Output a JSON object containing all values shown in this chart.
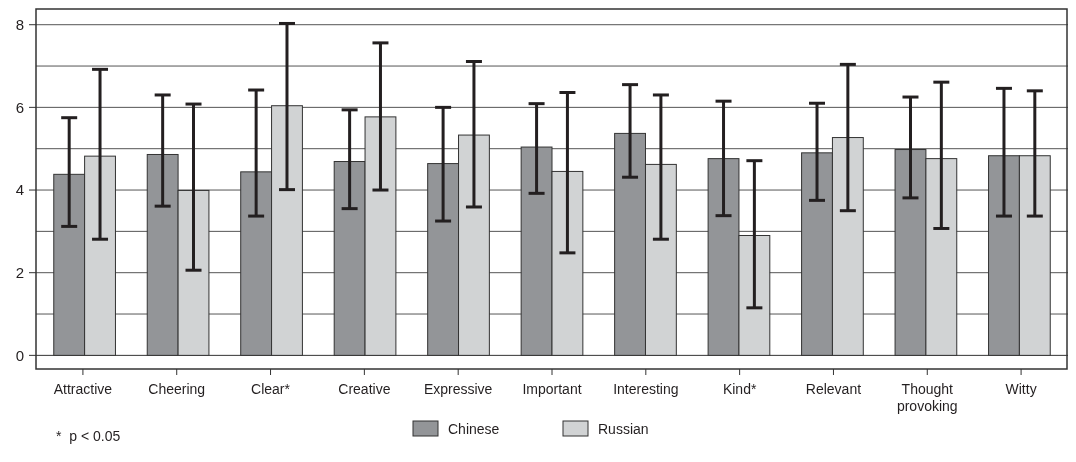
{
  "chart_data": {
    "type": "bar",
    "categories": [
      "Attractive",
      "Cheering",
      "Clear*",
      "Creative",
      "Expressive",
      "Important",
      "Interesting",
      "Kind*",
      "Relevant",
      "Thought provoking",
      "Witty"
    ],
    "series": [
      {
        "name": "Chinese",
        "color": "#939598",
        "values": [
          4.38,
          4.86,
          4.44,
          4.69,
          4.64,
          5.04,
          5.37,
          4.76,
          4.9,
          4.98,
          4.83
        ],
        "errors": [
          [
            3.12,
            5.75
          ],
          [
            3.61,
            6.3
          ],
          [
            3.37,
            6.42
          ],
          [
            3.55,
            5.94
          ],
          [
            3.25,
            6.0
          ],
          [
            3.92,
            6.09
          ],
          [
            4.31,
            6.55
          ],
          [
            3.38,
            6.15
          ],
          [
            3.75,
            6.1
          ],
          [
            3.81,
            6.25
          ],
          [
            3.37,
            6.46
          ]
        ]
      },
      {
        "name": "Russian",
        "color": "#d1d3d4",
        "values": [
          4.82,
          3.99,
          6.04,
          5.77,
          5.33,
          4.45,
          4.62,
          2.9,
          5.27,
          4.76,
          4.83
        ],
        "errors": [
          [
            2.81,
            6.92
          ],
          [
            2.06,
            6.08
          ],
          [
            4.01,
            8.03
          ],
          [
            4.0,
            7.56
          ],
          [
            3.59,
            7.11
          ],
          [
            2.48,
            6.36
          ],
          [
            2.81,
            6.3
          ],
          [
            1.15,
            4.71
          ],
          [
            3.5,
            7.04
          ],
          [
            3.07,
            6.61
          ],
          [
            3.37,
            6.4
          ]
        ]
      }
    ],
    "ylim": [
      -0.33,
      8.38
    ],
    "yticks": [
      0,
      {
        "value": 1,
        "label": null
      },
      2,
      {
        "value": 3,
        "label": null
      },
      4,
      {
        "value": 5,
        "label": null
      },
      6,
      {
        "value": 7,
        "label": null
      },
      8
    ],
    "grid": "y",
    "legend": "bottom",
    "annotations": [
      "*  p < 0.05"
    ]
  }
}
